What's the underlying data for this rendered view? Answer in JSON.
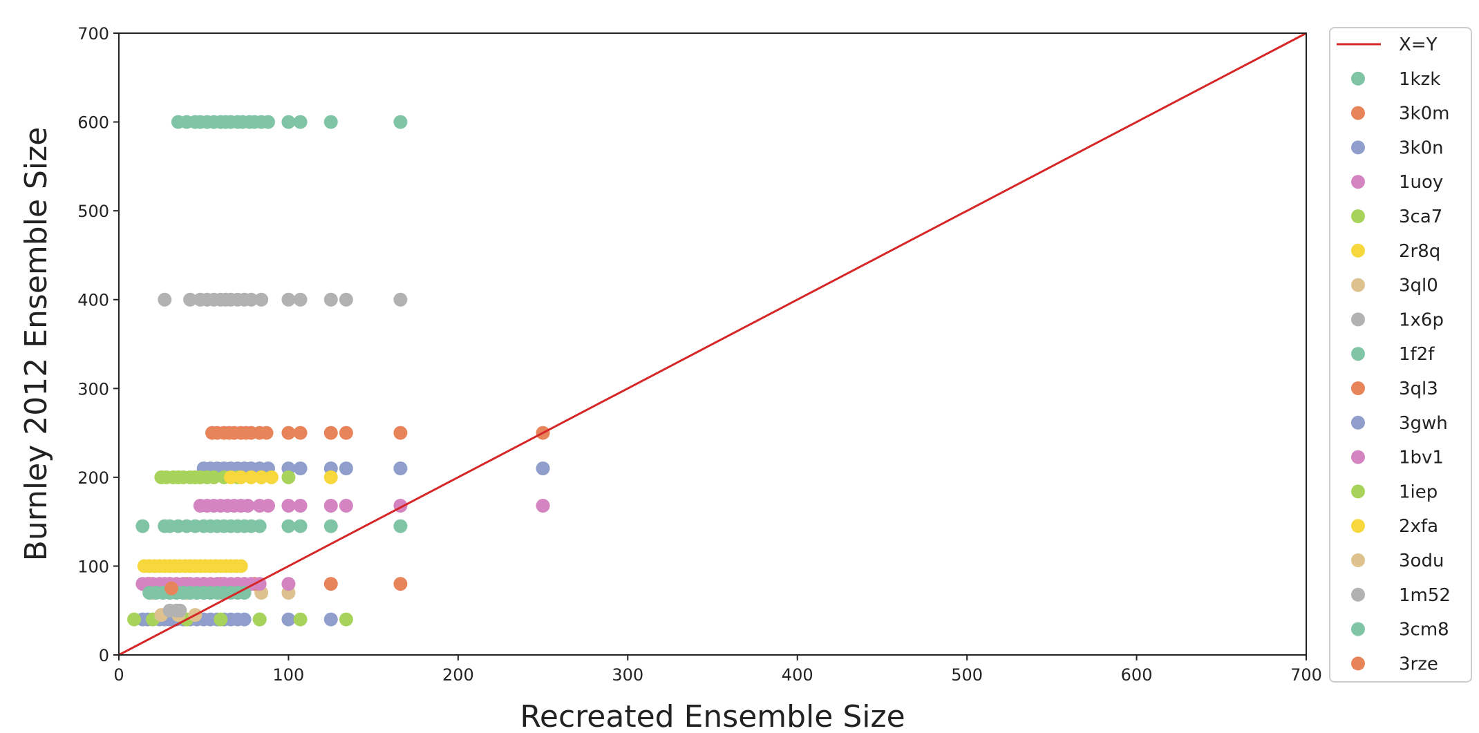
{
  "chart_data": {
    "type": "scatter",
    "title": "",
    "xlabel": "Recreated Ensemble Size",
    "ylabel": "Burnley 2012 Ensemble Size",
    "xlim": [
      0,
      700
    ],
    "ylim": [
      0,
      700
    ],
    "xticks": [
      0,
      100,
      200,
      300,
      400,
      500,
      600,
      700
    ],
    "yticks": [
      0,
      100,
      200,
      300,
      400,
      500,
      600,
      700
    ],
    "grid": false,
    "legend_position": "outside-right-top",
    "reference_line": {
      "name": "X=Y",
      "color": "#d62728",
      "x": [
        0,
        700
      ],
      "y": [
        0,
        700
      ]
    },
    "series": [
      {
        "name": "1kzk",
        "color": "#7fc4a4",
        "y": 600,
        "x": [
          35,
          40,
          45,
          48,
          52,
          56,
          60,
          63,
          66,
          70,
          73,
          77,
          80,
          84,
          88,
          100,
          107,
          125,
          166
        ]
      },
      {
        "name": "3k0m",
        "color": "#e8845a",
        "y": 250,
        "x": [
          55,
          58,
          62,
          65,
          68,
          72,
          75,
          78,
          83,
          87,
          100,
          107,
          125,
          134,
          166,
          250
        ]
      },
      {
        "name": "3k0n",
        "color": "#8f9ecb",
        "y": 210,
        "x": [
          50,
          54,
          58,
          62,
          66,
          70,
          74,
          78,
          83,
          88,
          100,
          107,
          125,
          134,
          166,
          250
        ]
      },
      {
        "name": "1uoy",
        "color": "#d484c1",
        "y": 168,
        "x": [
          48,
          52,
          56,
          60,
          64,
          68,
          72,
          76,
          83,
          88,
          100,
          107,
          125,
          134,
          166,
          250
        ]
      },
      {
        "name": "3ca7",
        "color": "#a8d35a",
        "y": 200,
        "x": [
          25,
          28,
          32,
          35,
          38,
          42,
          45,
          48,
          52,
          56,
          62,
          70,
          84,
          100
        ]
      },
      {
        "name": "2r8q",
        "color": "#f6d73c",
        "y": 200,
        "x": [
          66,
          72,
          78,
          84,
          90,
          125
        ]
      },
      {
        "name": "3ql0",
        "color": "#ddc28f",
        "y": 70,
        "x": [
          20,
          30,
          40,
          50,
          60,
          70,
          84,
          100
        ]
      },
      {
        "name": "1x6p",
        "color": "#b2b2b2",
        "y": 400,
        "x": [
          27,
          42,
          48,
          52,
          56,
          60,
          63,
          66,
          70,
          74,
          78,
          84,
          100,
          107,
          125,
          134,
          166
        ]
      },
      {
        "name": "1f2f",
        "color": "#7fc4a4",
        "y": 145,
        "x": [
          14,
          27,
          30,
          35,
          40,
          45,
          50,
          54,
          58,
          62,
          66,
          70,
          74,
          78,
          83,
          100,
          107,
          125,
          166
        ]
      },
      {
        "name": "3ql3",
        "color": "#e8845a",
        "y": 80,
        "x": [
          18,
          30,
          40,
          50,
          60,
          70,
          80,
          125,
          166
        ]
      },
      {
        "name": "3gwh",
        "color": "#8f9ecb",
        "y": 40,
        "x": [
          14,
          17,
          20,
          24,
          27,
          30,
          34,
          38,
          42,
          46,
          50,
          54,
          58,
          62,
          66,
          70,
          74,
          83,
          100,
          125
        ]
      },
      {
        "name": "1bv1",
        "color": "#d484c1",
        "y": 80,
        "x": [
          14,
          17,
          20,
          24,
          27,
          30,
          34,
          38,
          42,
          46,
          50,
          54,
          58,
          62,
          66,
          70,
          74,
          78,
          83,
          100
        ]
      },
      {
        "name": "1iep",
        "color": "#a8d35a",
        "y": 40,
        "x": [
          9,
          20,
          40,
          60,
          83,
          107,
          134
        ]
      },
      {
        "name": "2xfa",
        "color": "#f6d73c",
        "y": 100,
        "x": [
          15,
          18,
          21,
          24,
          27,
          30,
          33,
          36,
          39,
          42,
          45,
          48,
          51,
          54,
          57,
          60,
          63,
          66,
          69,
          72
        ]
      },
      {
        "name": "3odu",
        "color": "#ddc28f",
        "y": 45,
        "x": [
          25,
          35,
          45
        ]
      },
      {
        "name": "1m52",
        "color": "#b2b2b2",
        "y": 50,
        "x": [
          30,
          34,
          36
        ]
      },
      {
        "name": "3cm8",
        "color": "#7fc4a4",
        "y": 70,
        "x": [
          18,
          22,
          26,
          30,
          34,
          38,
          42,
          46,
          50,
          54,
          58,
          62,
          66,
          70,
          74
        ]
      },
      {
        "name": "3rze",
        "color": "#e8845a",
        "y": 75,
        "x": [
          31
        ]
      }
    ]
  }
}
